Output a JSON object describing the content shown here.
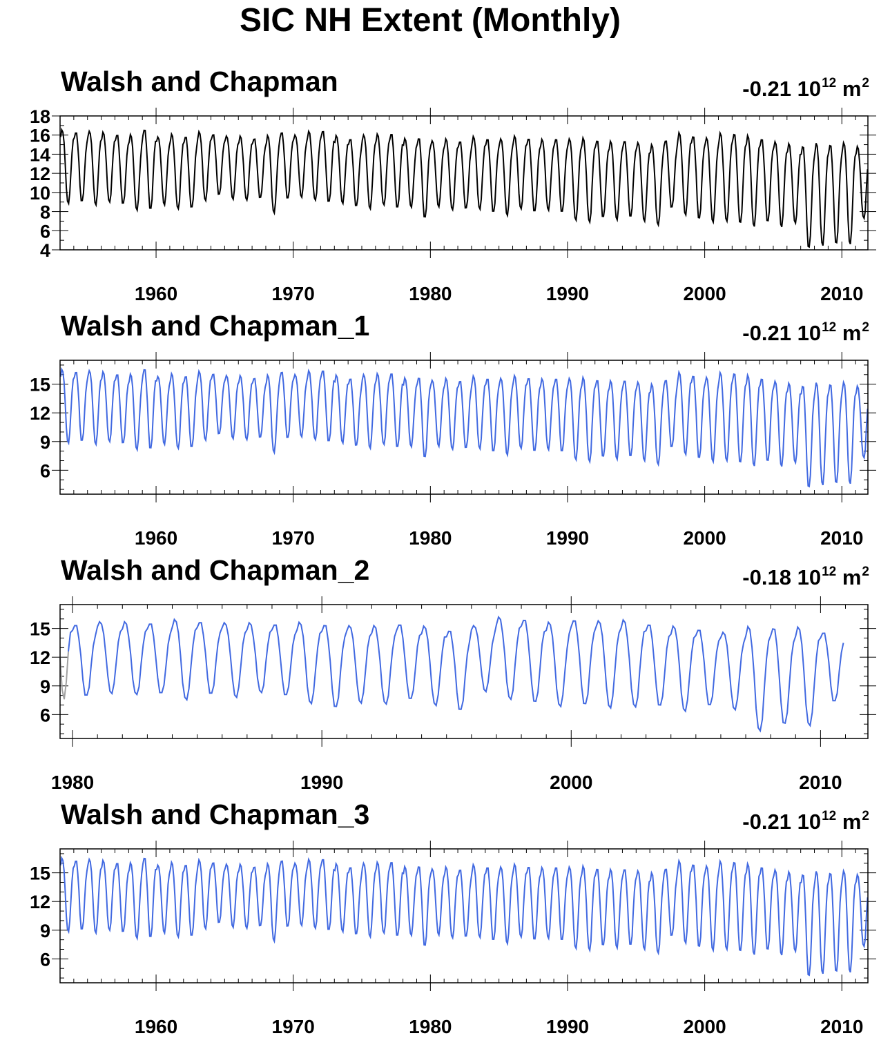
{
  "title": "SIC NH Extent (Monthly)",
  "colors": {
    "observed": "#000000",
    "model": "#4169e1",
    "spinup": "#a0a0a0"
  },
  "panels": [
    {
      "title": "Walsh and Chapman",
      "trend_value": "-0.21",
      "trend_unit_base": "10",
      "trend_unit_exp": "12",
      "trend_unit_m": "m",
      "trend_unit_m_exp": "2"
    },
    {
      "title": "Walsh and Chapman_1",
      "trend_value": "-0.21",
      "trend_unit_base": "10",
      "trend_unit_exp": "12",
      "trend_unit_m": "m",
      "trend_unit_m_exp": "2"
    },
    {
      "title": "Walsh and Chapman_2",
      "trend_value": "-0.18",
      "trend_unit_base": "10",
      "trend_unit_exp": "12",
      "trend_unit_m": "m",
      "trend_unit_m_exp": "2"
    },
    {
      "title": "Walsh and Chapman_3",
      "trend_value": "-0.21",
      "trend_unit_base": "10",
      "trend_unit_exp": "12",
      "trend_unit_m": "m",
      "trend_unit_m_exp": "2"
    }
  ],
  "chart_data": [
    {
      "type": "line",
      "title": "Walsh and Chapman",
      "trend": "-0.21 10^12 m^2",
      "xlim": [
        1953,
        2011.9
      ],
      "ylim": [
        4,
        18
      ],
      "xticks": [
        1960,
        1970,
        1980,
        1990,
        2000,
        2010
      ],
      "yticks": [
        4,
        6,
        8,
        10,
        12,
        14,
        16,
        18
      ],
      "color": "#000000",
      "series": [
        {
          "x_start": 1953.04,
          "step": "monthly",
          "annual_max": [
            16.5,
            16.3,
            16.4,
            16.2,
            16.0,
            16.0,
            16.6,
            15.8,
            16.0,
            15.8,
            16.3,
            16.1,
            15.9,
            15.8,
            15.6,
            15.9,
            16.3,
            16.0,
            16.3,
            16.4,
            15.9,
            15.6,
            16.0,
            16.0,
            16.1,
            15.6,
            15.7,
            15.4,
            15.5,
            15.3,
            15.8,
            15.6,
            15.6,
            15.8,
            15.6,
            15.5,
            15.6,
            15.6,
            15.6,
            15.4,
            15.3,
            15.4,
            15.2,
            14.9,
            15.4,
            16.2,
            15.9,
            15.7,
            16.1,
            16.1,
            15.9,
            15.6,
            15.3,
            15.0,
            14.8,
            15.1,
            15.0,
            15.2,
            14.7
          ],
          "annual_min": [
            8.9,
            9.1,
            8.8,
            9.0,
            8.8,
            8.2,
            8.3,
            8.8,
            8.3,
            8.4,
            9.2,
            9.8,
            9.4,
            9.2,
            9.4,
            7.9,
            9.4,
            9.6,
            9.2,
            9.0,
            8.9,
            8.6,
            8.4,
            8.7,
            8.4,
            8.5,
            7.4,
            8.6,
            8.2,
            8.3,
            8.3,
            8.0,
            7.7,
            8.3,
            8.0,
            8.2,
            8.0,
            7.2,
            6.9,
            7.4,
            7.2,
            7.5,
            7.1,
            6.6,
            8.4,
            7.7,
            7.3,
            7.0,
            7.0,
            6.8,
            6.5,
            7.0,
            6.5,
            6.8,
            4.2,
            4.5,
            4.7,
            4.7,
            7.3
          ]
        }
      ]
    },
    {
      "type": "line",
      "title": "Walsh and Chapman_1",
      "trend": "-0.21 10^12 m^2",
      "xlim": [
        1953,
        2011.9
      ],
      "ylim": [
        3.5,
        17.5
      ],
      "xticks": [
        1960,
        1970,
        1980,
        1990,
        2000,
        2010
      ],
      "yticks": [
        6,
        9,
        12,
        15
      ],
      "color": "#4169e1",
      "series": [
        {
          "x_start": 1953.04,
          "step": "monthly",
          "annual_max": [
            16.5,
            16.3,
            16.4,
            16.2,
            16.0,
            16.0,
            16.6,
            15.8,
            16.0,
            15.8,
            16.3,
            16.1,
            15.9,
            15.8,
            15.6,
            15.9,
            16.3,
            16.0,
            16.3,
            16.4,
            15.9,
            15.6,
            16.0,
            16.0,
            16.1,
            15.6,
            15.7,
            15.4,
            15.5,
            15.3,
            15.8,
            15.6,
            15.6,
            15.8,
            15.6,
            15.5,
            15.6,
            15.6,
            15.6,
            15.4,
            15.3,
            15.4,
            15.2,
            14.9,
            15.4,
            16.2,
            15.9,
            15.7,
            16.1,
            16.1,
            15.9,
            15.6,
            15.3,
            15.0,
            14.8,
            15.1,
            15.0,
            15.2,
            14.7
          ],
          "annual_min": [
            8.9,
            9.1,
            8.8,
            9.0,
            8.8,
            8.2,
            8.3,
            8.8,
            8.3,
            8.4,
            9.2,
            9.8,
            9.4,
            9.2,
            9.4,
            7.9,
            9.4,
            9.6,
            9.2,
            9.0,
            8.9,
            8.6,
            8.4,
            8.7,
            8.4,
            8.5,
            7.4,
            8.6,
            8.2,
            8.3,
            8.3,
            8.0,
            7.7,
            8.3,
            8.0,
            8.2,
            8.0,
            7.2,
            6.9,
            7.4,
            7.2,
            7.5,
            7.1,
            6.6,
            8.4,
            7.7,
            7.3,
            7.0,
            7.0,
            6.8,
            6.5,
            7.0,
            6.5,
            6.8,
            4.2,
            4.5,
            4.7,
            4.7,
            7.3
          ]
        }
      ]
    },
    {
      "type": "line",
      "title": "Walsh and Chapman_2",
      "trend": "-0.18 10^12 m^2",
      "xlim": [
        1979.5,
        2011.9
      ],
      "ylim": [
        3.5,
        17.5
      ],
      "xticks": [
        1980,
        1990,
        2000,
        2010
      ],
      "yticks": [
        6,
        9,
        12,
        15
      ],
      "color": "#4169e1",
      "spinup_color": "#a0a0a0",
      "spinup_end": 1979.9,
      "series": [
        {
          "x_start": 1979.5,
          "step": "monthly",
          "start_values": [
            12.0,
            8.6,
            7.6,
            9.4,
            12.6
          ],
          "annual_max": [
            15.5,
            15.4,
            15.7,
            15.6,
            15.5,
            15.9,
            15.7,
            15.6,
            15.5,
            15.4,
            15.6,
            15.4,
            15.3,
            15.2,
            15.4,
            15.2,
            14.8,
            15.3,
            16.1,
            15.9,
            15.6,
            15.9,
            15.8,
            15.8,
            15.4,
            15.2,
            14.9,
            14.6,
            15.1,
            15.0,
            15.1,
            14.6
          ],
          "annual_min": [
            8.5,
            8.0,
            8.3,
            8.1,
            8.2,
            7.6,
            8.2,
            7.9,
            8.3,
            8.0,
            7.2,
            6.8,
            7.3,
            7.1,
            7.6,
            7.0,
            6.5,
            8.5,
            7.6,
            7.3,
            6.9,
            7.1,
            6.8,
            6.8,
            6.9,
            6.4,
            7.0,
            6.6,
            4.3,
            5.0,
            4.9,
            7.4
          ]
        }
      ]
    },
    {
      "type": "line",
      "title": "Walsh and Chapman_3",
      "trend": "-0.21 10^12 m^2",
      "xlim": [
        1953,
        2011.9
      ],
      "ylim": [
        3.5,
        17.5
      ],
      "xticks": [
        1960,
        1970,
        1980,
        1990,
        2000,
        2010
      ],
      "yticks": [
        6,
        9,
        12,
        15
      ],
      "color": "#4169e1",
      "series": [
        {
          "x_start": 1953.04,
          "step": "monthly",
          "annual_max": [
            16.5,
            16.3,
            16.4,
            16.2,
            16.0,
            16.0,
            16.6,
            15.8,
            16.0,
            15.8,
            16.3,
            16.1,
            15.9,
            15.8,
            15.6,
            15.9,
            16.3,
            16.0,
            16.3,
            16.4,
            15.9,
            15.6,
            16.0,
            16.0,
            16.1,
            15.6,
            15.7,
            15.4,
            15.5,
            15.3,
            15.8,
            15.6,
            15.6,
            15.8,
            15.6,
            15.5,
            15.6,
            15.6,
            15.6,
            15.4,
            15.3,
            15.4,
            15.2,
            14.9,
            15.4,
            16.2,
            15.9,
            15.7,
            16.1,
            16.1,
            15.9,
            15.6,
            15.3,
            15.0,
            14.8,
            15.1,
            15.0,
            15.2,
            14.7
          ],
          "annual_min": [
            8.9,
            9.1,
            8.8,
            9.0,
            8.8,
            8.2,
            8.3,
            8.8,
            8.3,
            8.4,
            9.2,
            9.8,
            9.4,
            9.2,
            9.4,
            7.9,
            9.4,
            9.6,
            9.2,
            9.0,
            8.9,
            8.6,
            8.4,
            8.7,
            8.4,
            8.5,
            7.4,
            8.6,
            8.2,
            8.3,
            8.3,
            8.0,
            7.7,
            8.3,
            8.0,
            8.2,
            8.0,
            7.2,
            6.9,
            7.4,
            7.2,
            7.5,
            7.1,
            6.6,
            8.4,
            7.7,
            7.3,
            7.0,
            7.0,
            6.8,
            6.5,
            7.0,
            6.5,
            6.8,
            4.2,
            4.5,
            4.7,
            4.7,
            7.3
          ]
        }
      ]
    }
  ]
}
